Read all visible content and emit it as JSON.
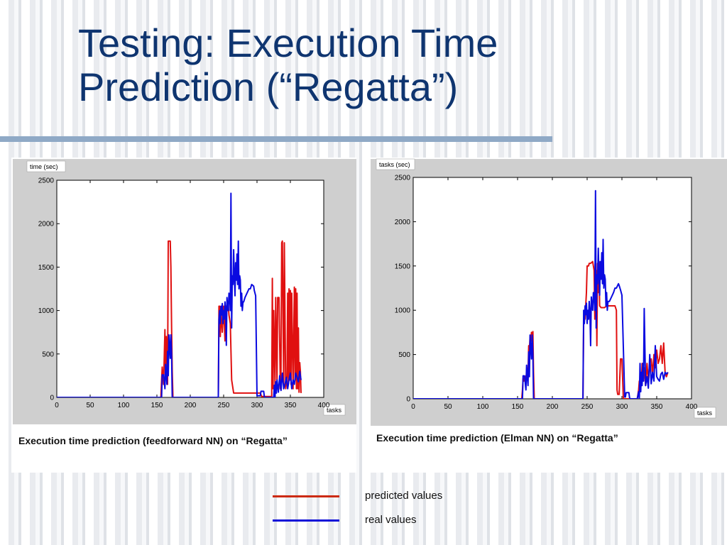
{
  "slide": {
    "title_line1": "Testing: Execution Time",
    "title_line2": "Prediction (“Regatta”)"
  },
  "colors": {
    "predicted": "#e01010",
    "real": "#0a0ae0",
    "title": "#0f3570"
  },
  "legend": {
    "predicted_label": "predicted values",
    "real_label": "real values"
  },
  "chart_data": [
    {
      "type": "line",
      "caption": "Execution time prediction (feedforward NN) on “Regatta”",
      "ylabel": "time (sec)",
      "xlabel": "tasks",
      "xlim": [
        0,
        400
      ],
      "ylim": [
        0,
        2500
      ],
      "xticks": [
        0,
        50,
        100,
        150,
        200,
        250,
        300,
        350,
        400
      ],
      "yticks": [
        0,
        500,
        1000,
        1500,
        2000,
        2500
      ],
      "grid": false,
      "series": [
        {
          "name": "predicted values",
          "color": "#e01010",
          "x": [
            0,
            156,
            157,
            158,
            160,
            162,
            163,
            164,
            166,
            167,
            169,
            170,
            171,
            172,
            173,
            174,
            175,
            176,
            242,
            243,
            244,
            245,
            246,
            248,
            250,
            252,
            253,
            255,
            256,
            257,
            258,
            260,
            262,
            265,
            268,
            270,
            275,
            278,
            280,
            282,
            283,
            285,
            290,
            295,
            300,
            304,
            305,
            306,
            307,
            308,
            310,
            320,
            322,
            323,
            324,
            325,
            327,
            328,
            330,
            331,
            333,
            335,
            336,
            337,
            338,
            340,
            341,
            343,
            345,
            346,
            347,
            348,
            349,
            350,
            351,
            352,
            354,
            356,
            357,
            358,
            359,
            360,
            361,
            362,
            363,
            364,
            365,
            366
          ],
          "y": [
            0,
            0,
            200,
            350,
            150,
            780,
            300,
            700,
            150,
            1800,
            1800,
            1800,
            1500,
            800,
            300,
            0,
            0,
            0,
            0,
            1050,
            1050,
            700,
            1000,
            750,
            1050,
            650,
            1050,
            1050,
            1000,
            1050,
            950,
            850,
            200,
            50,
            50,
            50,
            50,
            50,
            50,
            50,
            50,
            50,
            50,
            50,
            50,
            50,
            50,
            30,
            10,
            10,
            10,
            10,
            10,
            1370,
            100,
            1000,
            120,
            1150,
            200,
            1150,
            1150,
            100,
            300,
            1780,
            1800,
            100,
            1780,
            100,
            250,
            1200,
            150,
            1250,
            200,
            1230,
            150,
            1200,
            100,
            1270,
            200,
            1250,
            100,
            1200,
            100,
            800,
            60,
            400,
            300,
            50
          ]
        },
        {
          "name": "real values",
          "color": "#0a0ae0",
          "x": [
            0,
            157,
            158,
            160,
            162,
            163,
            165,
            166,
            167,
            168,
            170,
            171,
            172,
            173,
            174,
            175,
            242,
            243,
            244,
            245,
            246,
            247,
            248,
            249,
            250,
            251,
            252,
            253,
            254,
            255,
            256,
            257,
            258,
            259,
            260,
            261,
            262,
            263,
            264,
            265,
            266,
            267,
            268,
            269,
            270,
            271,
            272,
            273,
            274,
            275,
            276,
            277,
            278,
            279,
            280,
            282,
            285,
            288,
            290,
            292,
            295,
            296,
            298,
            300,
            305,
            306,
            310,
            311,
            312,
            313,
            315,
            320,
            325,
            326,
            327,
            328,
            329,
            330,
            332,
            334,
            336,
            338,
            340,
            342,
            344,
            346,
            348,
            350,
            352,
            354,
            356,
            358,
            360,
            362,
            364,
            366
          ],
          "y": [
            0,
            0,
            260,
            260,
            100,
            380,
            150,
            530,
            250,
            720,
            450,
            720,
            500,
            0,
            0,
            0,
            0,
            900,
            1000,
            850,
            1050,
            950,
            1080,
            850,
            1000,
            900,
            1100,
            1000,
            600,
            1150,
            1050,
            1000,
            1200,
            1170,
            1000,
            2350,
            800,
            1400,
            1300,
            1700,
            1400,
            1170,
            1550,
            1350,
            1650,
            1300,
            1800,
            1250,
            1400,
            1350,
            1050,
            1200,
            1000,
            1100,
            1100,
            1150,
            1200,
            1250,
            1250,
            1300,
            1280,
            1230,
            1170,
            20,
            20,
            70,
            70,
            10,
            0,
            0,
            0,
            0,
            0,
            140,
            0,
            180,
            50,
            200,
            60,
            250,
            80,
            280,
            100,
            150,
            230,
            100,
            200,
            280,
            100,
            200,
            150,
            280,
            230,
            180,
            300,
            200
          ]
        }
      ]
    },
    {
      "type": "line",
      "caption": "Execution time prediction (Elman NN) on “Regatta”",
      "ylabel": "tasks (sec)",
      "xlabel": "tasks",
      "xlim": [
        0,
        400
      ],
      "ylim": [
        0,
        2500
      ],
      "xticks": [
        0,
        50,
        100,
        150,
        200,
        250,
        300,
        350,
        400
      ],
      "yticks": [
        0,
        500,
        1000,
        1500,
        2000,
        2500
      ],
      "grid": false,
      "series": [
        {
          "name": "predicted values",
          "color": "#e01010",
          "x": [
            0,
            156,
            157,
            158,
            159,
            160,
            161,
            162,
            163,
            164,
            165,
            166,
            167,
            168,
            169,
            170,
            171,
            172,
            173,
            174,
            175,
            244,
            245,
            246,
            247,
            248,
            249,
            250,
            252,
            253,
            255,
            258,
            260,
            261,
            262,
            263,
            264,
            265,
            266,
            267,
            268,
            270,
            272,
            275,
            278,
            280,
            285,
            290,
            292,
            293,
            294,
            296,
            298,
            300,
            302,
            305,
            306,
            307,
            308,
            310,
            320,
            322,
            324,
            325,
            326,
            327,
            328,
            329,
            330,
            332,
            334,
            336,
            338,
            340,
            342,
            344,
            346,
            348,
            350,
            352,
            354,
            356,
            358,
            360,
            362,
            364,
            366
          ],
          "y": [
            0,
            0,
            100,
            230,
            200,
            250,
            200,
            260,
            270,
            300,
            280,
            600,
            550,
            700,
            650,
            750,
            700,
            760,
            300,
            0,
            0,
            0,
            850,
            950,
            900,
            1050,
            1200,
            1500,
            1500,
            1530,
            1530,
            1550,
            1450,
            900,
            1050,
            1450,
            600,
            1530,
            1200,
            1550,
            1050,
            1030,
            1030,
            1030,
            1050,
            1050,
            1050,
            1050,
            1000,
            100,
            50,
            50,
            450,
            450,
            0,
            0,
            0,
            0,
            0,
            0,
            0,
            0,
            100,
            200,
            120,
            250,
            150,
            400,
            200,
            350,
            150,
            400,
            200,
            420,
            450,
            280,
            500,
            350,
            550,
            400,
            450,
            600,
            400,
            630,
            300,
            250,
            300
          ]
        },
        {
          "name": "real values",
          "color": "#0a0ae0",
          "x": [
            0,
            157,
            158,
            160,
            162,
            163,
            165,
            166,
            167,
            168,
            170,
            171,
            172,
            173,
            174,
            175,
            244,
            245,
            246,
            247,
            248,
            249,
            250,
            251,
            252,
            253,
            254,
            255,
            256,
            257,
            258,
            259,
            260,
            261,
            262,
            263,
            264,
            265,
            266,
            267,
            268,
            269,
            270,
            271,
            272,
            273,
            274,
            275,
            276,
            277,
            278,
            279,
            280,
            282,
            285,
            288,
            290,
            292,
            295,
            296,
            298,
            300,
            304,
            305,
            306,
            310,
            311,
            312,
            313,
            315,
            320,
            322,
            324,
            325,
            326,
            327,
            328,
            329,
            330,
            331,
            332,
            334,
            336,
            338,
            340,
            342,
            344,
            346,
            348,
            350,
            352,
            354,
            356,
            358,
            360,
            362,
            364,
            366
          ],
          "y": [
            0,
            0,
            260,
            260,
            100,
            380,
            150,
            530,
            250,
            720,
            450,
            720,
            500,
            0,
            0,
            0,
            0,
            1000,
            850,
            1050,
            950,
            1080,
            850,
            1000,
            900,
            1100,
            1000,
            600,
            1150,
            1050,
            1000,
            1200,
            1170,
            1000,
            2350,
            800,
            1400,
            1300,
            1700,
            1400,
            1170,
            1550,
            1350,
            1650,
            1300,
            1800,
            1250,
            1400,
            1350,
            1050,
            1200,
            1000,
            1100,
            1100,
            1150,
            1200,
            1250,
            1250,
            1300,
            1280,
            1230,
            1170,
            20,
            20,
            70,
            70,
            10,
            0,
            0,
            0,
            0,
            0,
            80,
            0,
            400,
            80,
            300,
            150,
            400,
            200,
            1020,
            150,
            250,
            120,
            500,
            170,
            300,
            200,
            600,
            250,
            220,
            200,
            280,
            300,
            220,
            300,
            280,
            300
          ]
        }
      ]
    }
  ]
}
